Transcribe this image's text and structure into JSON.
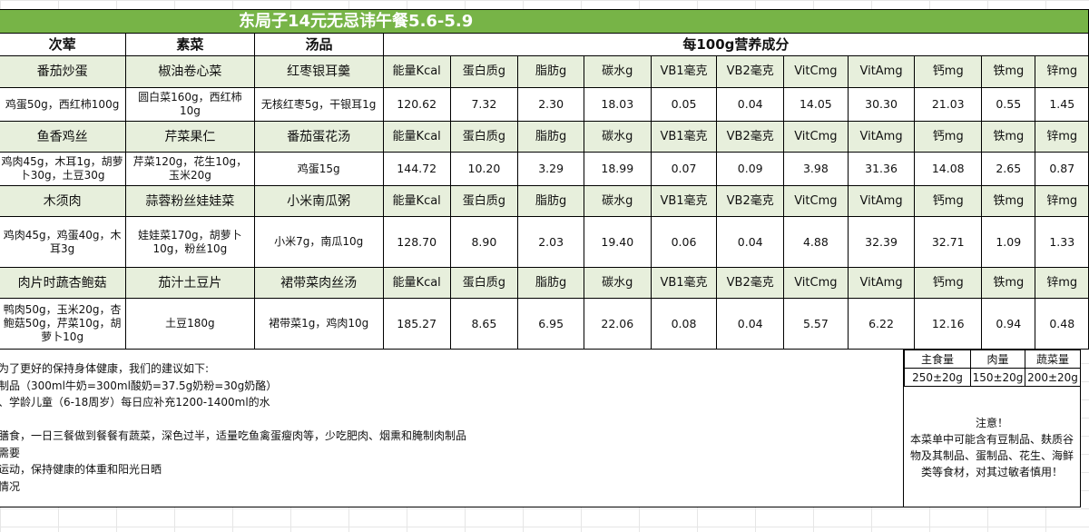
{
  "title": "东局子14元无忌讳午餐5.6-5.9",
  "headers": {
    "main_dish": "次荤",
    "veg_dish": "素菜",
    "soup": "汤品",
    "nutrition": "每100g营养成分"
  },
  "nutrient_labels": [
    "能量Kcal",
    "蛋白质g",
    "脂肪g",
    "碳水g",
    "VB1毫克",
    "VB2毫克",
    "VitCmg",
    "VitAmg",
    "钙mg",
    "铁mg",
    "锌mg"
  ],
  "days": [
    {
      "main": "番茄炒蛋",
      "veg": "椒油卷心菜",
      "soup": "红枣银耳羹",
      "main_ing": "鸡蛋50g，西红柿100g",
      "veg_ing": "圆白菜160g，西红柿10g",
      "soup_ing": "无核红枣5g，干银耳1g",
      "values": [
        "120.62",
        "7.32",
        "2.30",
        "18.03",
        "0.05",
        "0.04",
        "14.05",
        "30.30",
        "21.03",
        "0.55",
        "1.45"
      ]
    },
    {
      "main": "鱼香鸡丝",
      "veg": "芹菜果仁",
      "soup": "番茄蛋花汤",
      "main_ing": "鸡肉45g，木耳1g，胡萝卜30g，土豆30g",
      "veg_ing": "芹菜120g，花生10g，玉米20g",
      "soup_ing": "鸡蛋15g",
      "values": [
        "144.72",
        "10.20",
        "3.29",
        "18.99",
        "0.07",
        "0.09",
        "3.98",
        "31.36",
        "14.08",
        "2.65",
        "0.87"
      ]
    },
    {
      "main": "木须肉",
      "veg": "蒜蓉粉丝娃娃菜",
      "soup": "小米南瓜粥",
      "main_ing": "鸡肉45g，鸡蛋40g，木耳3g",
      "veg_ing": "娃娃菜170g，胡萝卜10g，粉丝10g",
      "soup_ing": "小米7g，南瓜10g",
      "values": [
        "128.70",
        "8.90",
        "2.03",
        "19.40",
        "0.06",
        "0.04",
        "4.88",
        "32.39",
        "32.71",
        "1.09",
        "1.33"
      ]
    },
    {
      "main": "肉片时蔬杏鲍菇",
      "veg": "茄汁土豆片",
      "soup": "裙带菜肉丝汤",
      "main_ing": "鸭肉50g，玉米20g，杏鲍菇50g，芹菜10g，胡萝卜10g",
      "veg_ing": "土豆180g",
      "soup_ing": "裙带菜1g，鸡肉10g",
      "values": [
        "185.27",
        "8.65",
        "6.95",
        "22.06",
        "0.08",
        "0.04",
        "5.57",
        "6.22",
        "12.16",
        "0.94",
        "0.48"
      ]
    }
  ],
  "advice_lines": [
    "为了更好的保持身体健康，我们的建议如下:",
    "制品（300ml牛奶=300ml酸奶=37.5g奶粉=30g奶酪）",
    "、学龄儿童（6-18周岁）每日应补充1200-1400ml的水",
    "",
    "膳食，一日三餐做到餐餐有蔬菜，深色过半，适量吃鱼禽蛋瘦肉等，少吃肥肉、烟熏和腌制肉制品",
    "需要",
    "运动，保持健康的体重和阳光日晒",
    "情况"
  ],
  "portions": {
    "headers": [
      "主食量",
      "肉量",
      "蔬菜量"
    ],
    "values": [
      "250±20g",
      "150±20g",
      "200±20g"
    ]
  },
  "allergen": {
    "title": "注意！",
    "body": "本菜单中可能含有豆制品、麸质谷物及其制品、蛋制品、花生、海鲜类等食材，对其过敏者慎用！"
  },
  "colors": {
    "title_bg": "#77b447",
    "dish_row_bg": "#e7efdc",
    "grid": "#e6e6e6"
  }
}
